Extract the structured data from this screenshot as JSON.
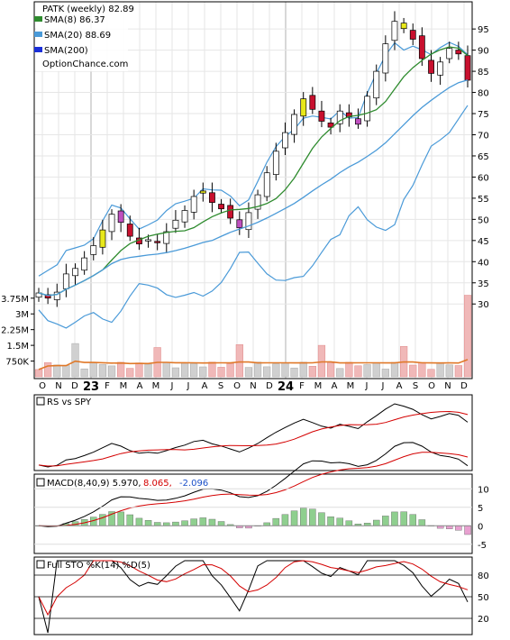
{
  "chart_data": {
    "type": "candlestick",
    "symbol_label": "PATK (weekly) 82.89",
    "watermark": "OptionChance.com",
    "legend": [
      {
        "key": "sma8",
        "label": "SMA(8) 86.37",
        "color": "#2e8b2e"
      },
      {
        "key": "sma20",
        "label": "SMA(20) 88.69",
        "color": "#4a9ad8"
      },
      {
        "key": "sma200",
        "label": "SMA(200)",
        "color": "#1a2fd8"
      }
    ],
    "price_axis": {
      "min": 26,
      "max": 101,
      "ticks": [
        30,
        35,
        40,
        45,
        50,
        55,
        60,
        65,
        70,
        75,
        80,
        85,
        90,
        95
      ]
    },
    "volume_axis": {
      "ticks": [
        "750K",
        "1.5M",
        "2.25M",
        "3M",
        "3.75M"
      ],
      "tick_values": [
        0.75,
        1.5,
        2.25,
        3.0,
        3.75
      ]
    },
    "time_axis": {
      "labels": [
        "O",
        "N",
        "D",
        "23",
        "F",
        "M",
        "A",
        "M",
        "J",
        "J",
        "A",
        "S",
        "O",
        "N",
        "D",
        "24",
        "F",
        "M",
        "A",
        "M",
        "J",
        "J",
        "A",
        "S",
        "O",
        "N",
        "D"
      ],
      "year_labels": [
        "23",
        "24"
      ]
    },
    "weekly_close": [
      32.6,
      31.4,
      32.8,
      37.1,
      38.4,
      40.9,
      43.8,
      47.5,
      51.2,
      49.3,
      46.0,
      44.2,
      45.2,
      44.7,
      47.1,
      49.8,
      52.1,
      55.4,
      56.7,
      54.0,
      52.5,
      50.3,
      48.0,
      51.6,
      55.8,
      61.0,
      66.1,
      70.5,
      74.8,
      78.5,
      76.0,
      73.2,
      71.8,
      75.6,
      74.2,
      72.5,
      79.1,
      85.0,
      91.5,
      96.8,
      95.1,
      92.6,
      88.0,
      84.5,
      87.2,
      90.4,
      89.1,
      82.89
    ],
    "sma8_last": 86.37,
    "sma20_last": 88.69,
    "bollinger": "upper and lower bands drawn around SMA(20)",
    "panels": [
      {
        "name": "rs",
        "label": "RS vs SPY"
      },
      {
        "name": "macd",
        "label_main": "MACD(8,40,9) 5.970,",
        "label_signal": "8.065,",
        "label_hist": "-2.096",
        "ticks": [
          10,
          5,
          0,
          -5
        ]
      },
      {
        "name": "sto",
        "label": "Full STO %K(14) %D(5)",
        "ticks": [
          80,
          50,
          20
        ]
      }
    ]
  }
}
